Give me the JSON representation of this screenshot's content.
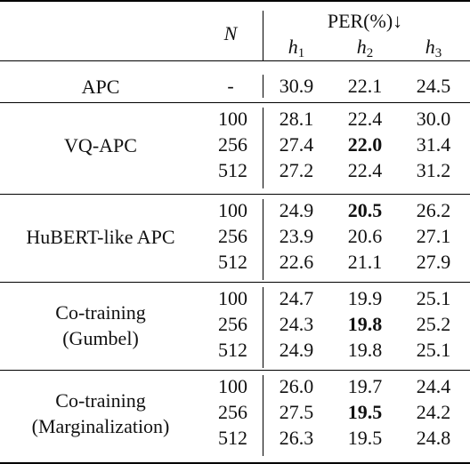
{
  "header": {
    "n_label": "N",
    "metric_label": "PER(%)↓",
    "h_sub": [
      "1",
      "2",
      "3"
    ]
  },
  "groups": [
    {
      "label": [
        "APC"
      ],
      "rows": [
        {
          "n": "-",
          "h": [
            "30.9",
            "22.1",
            "24.5"
          ],
          "bold": []
        }
      ]
    },
    {
      "label": [
        "VQ-APC"
      ],
      "rows": [
        {
          "n": "100",
          "h": [
            "28.1",
            "22.4",
            "30.0"
          ],
          "bold": []
        },
        {
          "n": "256",
          "h": [
            "27.4",
            "22.0",
            "31.4"
          ],
          "bold": [
            1
          ]
        },
        {
          "n": "512",
          "h": [
            "27.2",
            "22.4",
            "31.2"
          ],
          "bold": []
        }
      ]
    },
    {
      "label": [
        "HuBERT-like APC"
      ],
      "rows": [
        {
          "n": "100",
          "h": [
            "24.9",
            "20.5",
            "26.2"
          ],
          "bold": [
            1
          ]
        },
        {
          "n": "256",
          "h": [
            "23.9",
            "20.6",
            "27.1"
          ],
          "bold": []
        },
        {
          "n": "512",
          "h": [
            "22.6",
            "21.1",
            "27.9"
          ],
          "bold": []
        }
      ]
    },
    {
      "label": [
        "Co-training",
        "(Gumbel)"
      ],
      "rows": [
        {
          "n": "100",
          "h": [
            "24.7",
            "19.9",
            "25.1"
          ],
          "bold": []
        },
        {
          "n": "256",
          "h": [
            "24.3",
            "19.8",
            "25.2"
          ],
          "bold": [
            1
          ]
        },
        {
          "n": "512",
          "h": [
            "24.9",
            "19.8",
            "25.1"
          ],
          "bold": []
        }
      ]
    },
    {
      "label": [
        "Co-training",
        "(Marginalization)"
      ],
      "rows": [
        {
          "n": "100",
          "h": [
            "26.0",
            "19.7",
            "24.4"
          ],
          "bold": []
        },
        {
          "n": "256",
          "h": [
            "27.5",
            "19.5",
            "24.2"
          ],
          "bold": [
            1
          ]
        },
        {
          "n": "512",
          "h": [
            "26.3",
            "19.5",
            "24.8"
          ],
          "bold": []
        }
      ]
    }
  ]
}
